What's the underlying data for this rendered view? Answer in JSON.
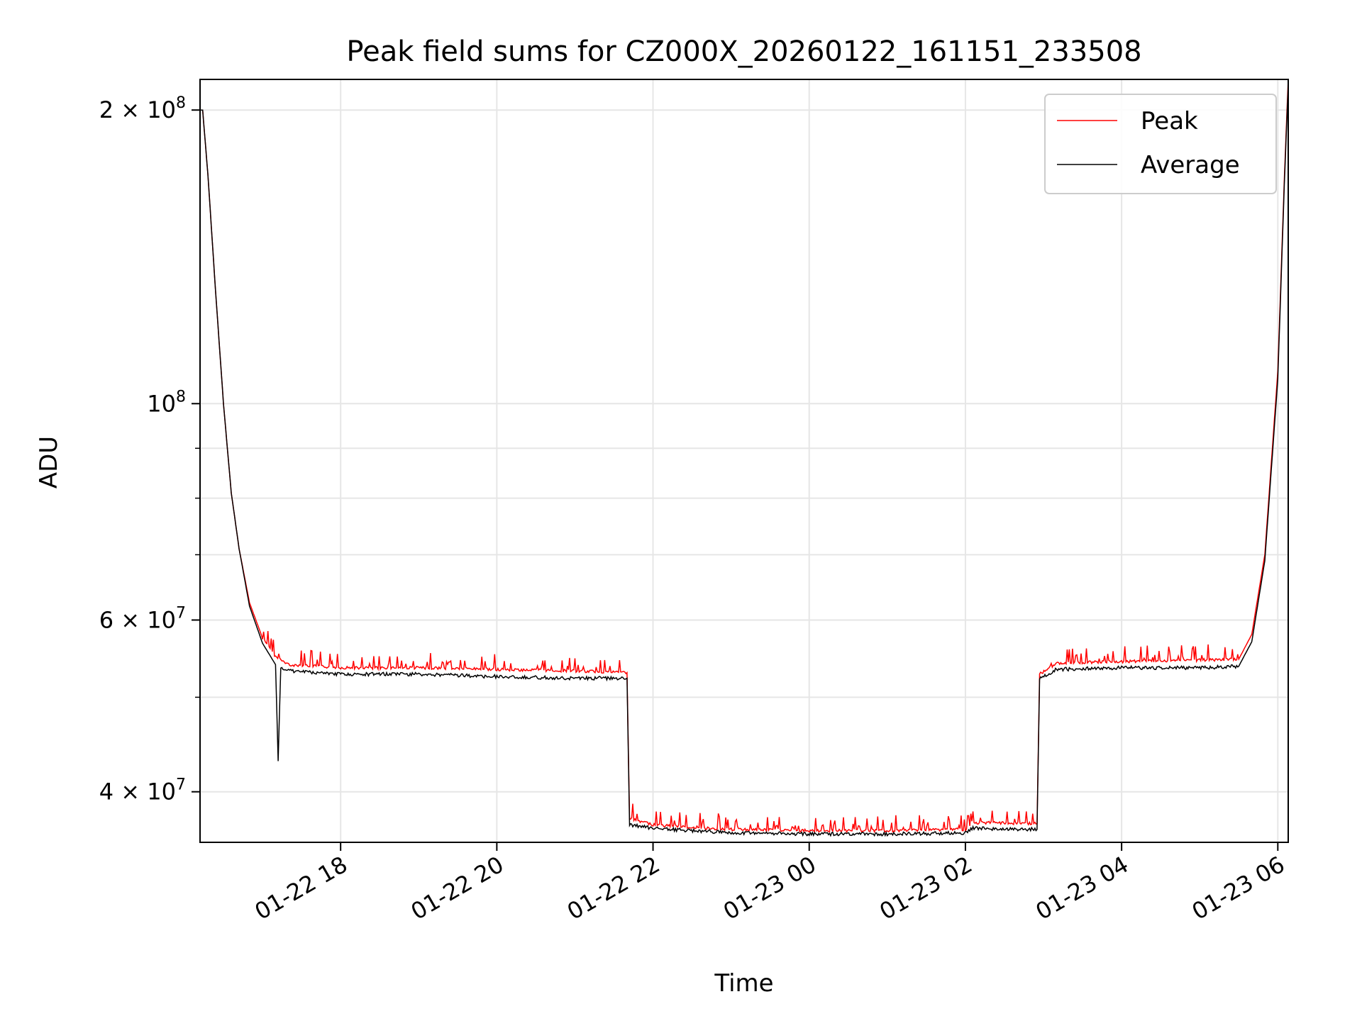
{
  "chart_data": {
    "type": "line",
    "title": "Peak field sums for CZ000X_20260122_161151_233508",
    "xlabel": "Time",
    "ylabel": "ADU",
    "yscale": "log",
    "ylim": [
      35500000,
      215000000
    ],
    "xlim": [
      "2026-01-22 16:12",
      "2026-01-23 06:08"
    ],
    "grid": true,
    "legend": "top-right",
    "x_ticks": [
      {
        "t": "2026-01-22 18:00",
        "label": "01-22 18"
      },
      {
        "t": "2026-01-22 20:00",
        "label": "01-22 20"
      },
      {
        "t": "2026-01-22 22:00",
        "label": "01-22 22"
      },
      {
        "t": "2026-01-23 00:00",
        "label": "01-23 00"
      },
      {
        "t": "2026-01-23 02:00",
        "label": "01-23 02"
      },
      {
        "t": "2026-01-23 04:00",
        "label": "01-23 04"
      },
      {
        "t": "2026-01-23 06:00",
        "label": "01-23 06"
      }
    ],
    "y_ticks": [
      {
        "v": 200000000,
        "base": "2 × 10",
        "exp": "8"
      },
      {
        "v": 100000000,
        "base": "10",
        "exp": "8"
      },
      {
        "v": 60000000,
        "base": "6 × 10",
        "exp": "7"
      },
      {
        "v": 40000000,
        "base": "4 × 10",
        "exp": "7"
      }
    ],
    "y_minor_ticks": [
      50000000,
      70000000,
      80000000,
      90000000
    ],
    "series": [
      {
        "name": "Peak",
        "color": "#ff0000",
        "points": [
          [
            "2026-01-22 16:12",
            200000000
          ],
          [
            "2026-01-22 16:14",
            200000000
          ],
          [
            "2026-01-22 16:18",
            172000000
          ],
          [
            "2026-01-22 16:24",
            130000000
          ],
          [
            "2026-01-22 16:30",
            100000000
          ],
          [
            "2026-01-22 16:36",
            81000000
          ],
          [
            "2026-01-22 16:42",
            71000000
          ],
          [
            "2026-01-22 16:50",
            62500000
          ],
          [
            "2026-01-22 17:00",
            57500000
          ],
          [
            "2026-01-22 17:10",
            55000000
          ],
          [
            "2026-01-22 17:20",
            54000000
          ],
          [
            "2026-01-22 18:00",
            53600000
          ],
          [
            "2026-01-22 19:00",
            53600000
          ],
          [
            "2026-01-22 20:00",
            53400000
          ],
          [
            "2026-01-22 21:00",
            53200000
          ],
          [
            "2026-01-22 21:40",
            53000000
          ],
          [
            "2026-01-22 21:42",
            37600000
          ],
          [
            "2026-01-22 22:00",
            37000000
          ],
          [
            "2026-01-22 23:00",
            36600000
          ],
          [
            "2026-01-23 00:00",
            36500000
          ],
          [
            "2026-01-23 01:00",
            36500000
          ],
          [
            "2026-01-23 02:00",
            36600000
          ],
          [
            "2026-01-23 02:05",
            37200000
          ],
          [
            "2026-01-23 02:55",
            37100000
          ],
          [
            "2026-01-23 02:57",
            52800000
          ],
          [
            "2026-01-23 03:10",
            54200000
          ],
          [
            "2026-01-23 04:00",
            54400000
          ],
          [
            "2026-01-23 05:00",
            54600000
          ],
          [
            "2026-01-23 05:30",
            54700000
          ],
          [
            "2026-01-23 05:40",
            58000000
          ],
          [
            "2026-01-23 05:50",
            70000000
          ],
          [
            "2026-01-23 06:00",
            108000000
          ],
          [
            "2026-01-23 06:05",
            170000000
          ],
          [
            "2026-01-23 06:08",
            215000000
          ]
        ]
      },
      {
        "name": "Average",
        "color": "#000000",
        "points": [
          [
            "2026-01-22 16:12",
            200000000
          ],
          [
            "2026-01-22 16:14",
            200000000
          ],
          [
            "2026-01-22 16:18",
            172000000
          ],
          [
            "2026-01-22 16:24",
            130000000
          ],
          [
            "2026-01-22 16:30",
            100000000
          ],
          [
            "2026-01-22 16:36",
            81000000
          ],
          [
            "2026-01-22 16:42",
            71000000
          ],
          [
            "2026-01-22 16:50",
            62000000
          ],
          [
            "2026-01-22 17:00",
            56800000
          ],
          [
            "2026-01-22 17:10",
            54000000
          ],
          [
            "2026-01-22 17:12",
            43000000
          ],
          [
            "2026-01-22 17:14",
            53500000
          ],
          [
            "2026-01-22 17:20",
            53200000
          ],
          [
            "2026-01-22 18:00",
            52800000
          ],
          [
            "2026-01-22 19:00",
            52800000
          ],
          [
            "2026-01-22 20:00",
            52500000
          ],
          [
            "2026-01-22 21:00",
            52300000
          ],
          [
            "2026-01-22 21:40",
            52300000
          ],
          [
            "2026-01-22 21:42",
            37000000
          ],
          [
            "2026-01-22 22:00",
            36700000
          ],
          [
            "2026-01-22 23:00",
            36300000
          ],
          [
            "2026-01-23 00:00",
            36200000
          ],
          [
            "2026-01-23 01:00",
            36200000
          ],
          [
            "2026-01-23 02:00",
            36300000
          ],
          [
            "2026-01-23 02:05",
            36700000
          ],
          [
            "2026-01-23 02:55",
            36600000
          ],
          [
            "2026-01-23 02:57",
            52300000
          ],
          [
            "2026-01-23 03:10",
            53400000
          ],
          [
            "2026-01-23 04:00",
            53600000
          ],
          [
            "2026-01-23 05:00",
            53600000
          ],
          [
            "2026-01-23 05:30",
            53800000
          ],
          [
            "2026-01-23 05:40",
            57000000
          ],
          [
            "2026-01-23 05:50",
            69000000
          ],
          [
            "2026-01-23 06:00",
            106000000
          ],
          [
            "2026-01-23 06:05",
            168000000
          ],
          [
            "2026-01-23 06:08",
            212000000
          ]
        ]
      }
    ]
  }
}
